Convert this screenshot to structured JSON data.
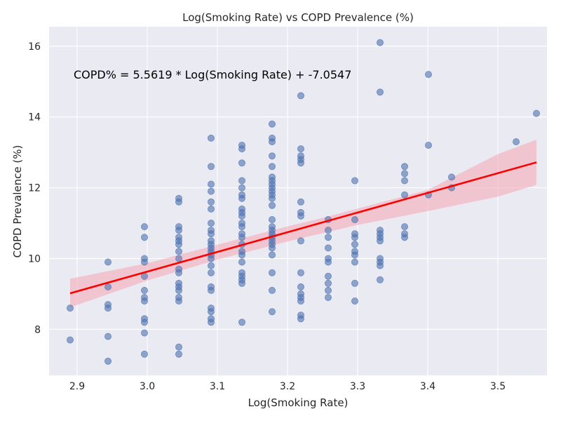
{
  "chart_data": {
    "type": "scatter",
    "title": "Log(Smoking Rate) vs COPD Prevalence (%)",
    "xlabel": "Log(Smoking Rate)",
    "ylabel": "COPD Prevalence (%)",
    "annotation": "COPD% = 5.5619 * Log(Smoking Rate) + -7.0547",
    "xlim": [
      2.86,
      3.57
    ],
    "ylim": [
      6.7,
      16.55
    ],
    "xticks": [
      "2.9",
      "3.0",
      "3.1",
      "3.2",
      "3.3",
      "3.4",
      "3.5"
    ],
    "yticks": [
      "8",
      "10",
      "12",
      "14",
      "16"
    ],
    "grid": true,
    "background": "#eaeaf2",
    "point_color": "#4c72b0",
    "line_color": "#ff0000",
    "band_color": "#f4a6b4",
    "regression": {
      "slope": 5.5619,
      "intercept": -7.0547,
      "x_start": 2.89,
      "x_end": 3.555
    },
    "confidence_band": {
      "x": [
        2.89,
        3.0,
        3.1,
        3.2,
        3.25,
        3.3,
        3.4,
        3.5,
        3.555
      ],
      "lower": [
        8.62,
        9.38,
        9.97,
        10.48,
        10.72,
        10.95,
        11.34,
        11.75,
        12.08
      ],
      "upper": [
        9.43,
        9.87,
        10.39,
        10.91,
        11.15,
        11.41,
        11.94,
        12.95,
        13.36
      ]
    },
    "points": [
      [
        2.89,
        7.7
      ],
      [
        2.89,
        8.6
      ],
      [
        2.944,
        7.1
      ],
      [
        2.944,
        7.8
      ],
      [
        2.944,
        8.6
      ],
      [
        2.944,
        8.7
      ],
      [
        2.944,
        9.2
      ],
      [
        2.944,
        9.9
      ],
      [
        2.996,
        7.3
      ],
      [
        2.996,
        7.9
      ],
      [
        2.996,
        8.2
      ],
      [
        2.996,
        8.3
      ],
      [
        2.996,
        8.8
      ],
      [
        2.996,
        8.9
      ],
      [
        2.996,
        9.1
      ],
      [
        2.996,
        9.5
      ],
      [
        2.996,
        9.9
      ],
      [
        2.996,
        10.0
      ],
      [
        2.996,
        10.6
      ],
      [
        2.996,
        10.9
      ],
      [
        3.045,
        7.3
      ],
      [
        3.045,
        7.5
      ],
      [
        3.045,
        8.8
      ],
      [
        3.045,
        8.9
      ],
      [
        3.045,
        9.1
      ],
      [
        3.045,
        9.2
      ],
      [
        3.045,
        9.3
      ],
      [
        3.045,
        9.6
      ],
      [
        3.045,
        9.7
      ],
      [
        3.045,
        10.0
      ],
      [
        3.045,
        10.2
      ],
      [
        3.045,
        10.4
      ],
      [
        3.045,
        10.5
      ],
      [
        3.045,
        10.6
      ],
      [
        3.045,
        10.8
      ],
      [
        3.045,
        10.9
      ],
      [
        3.045,
        11.6
      ],
      [
        3.045,
        11.7
      ],
      [
        3.091,
        8.2
      ],
      [
        3.091,
        8.3
      ],
      [
        3.091,
        8.5
      ],
      [
        3.091,
        8.6
      ],
      [
        3.091,
        9.1
      ],
      [
        3.091,
        9.2
      ],
      [
        3.091,
        9.6
      ],
      [
        3.091,
        9.8
      ],
      [
        3.091,
        10.0
      ],
      [
        3.091,
        10.1
      ],
      [
        3.091,
        10.2
      ],
      [
        3.091,
        10.3
      ],
      [
        3.091,
        10.4
      ],
      [
        3.091,
        10.5
      ],
      [
        3.091,
        10.7
      ],
      [
        3.091,
        10.8
      ],
      [
        3.091,
        11.0
      ],
      [
        3.091,
        11.4
      ],
      [
        3.091,
        11.6
      ],
      [
        3.091,
        11.9
      ],
      [
        3.091,
        12.1
      ],
      [
        3.091,
        12.6
      ],
      [
        3.091,
        13.4
      ],
      [
        3.135,
        8.2
      ],
      [
        3.135,
        9.3
      ],
      [
        3.135,
        9.4
      ],
      [
        3.135,
        9.5
      ],
      [
        3.135,
        9.6
      ],
      [
        3.135,
        9.9
      ],
      [
        3.135,
        10.1
      ],
      [
        3.135,
        10.2
      ],
      [
        3.135,
        10.4
      ],
      [
        3.135,
        10.6
      ],
      [
        3.135,
        10.7
      ],
      [
        3.135,
        10.9
      ],
      [
        3.135,
        11.0
      ],
      [
        3.135,
        11.2
      ],
      [
        3.135,
        11.3
      ],
      [
        3.135,
        11.4
      ],
      [
        3.135,
        11.7
      ],
      [
        3.135,
        11.8
      ],
      [
        3.135,
        12.0
      ],
      [
        3.135,
        12.2
      ],
      [
        3.135,
        12.7
      ],
      [
        3.135,
        13.1
      ],
      [
        3.135,
        13.2
      ],
      [
        3.178,
        8.5
      ],
      [
        3.178,
        9.1
      ],
      [
        3.178,
        9.6
      ],
      [
        3.178,
        10.1
      ],
      [
        3.178,
        10.3
      ],
      [
        3.178,
        10.4
      ],
      [
        3.178,
        10.5
      ],
      [
        3.178,
        10.6
      ],
      [
        3.178,
        10.7
      ],
      [
        3.178,
        10.8
      ],
      [
        3.178,
        10.9
      ],
      [
        3.178,
        11.1
      ],
      [
        3.178,
        11.5
      ],
      [
        3.178,
        11.7
      ],
      [
        3.178,
        11.8
      ],
      [
        3.178,
        11.9
      ],
      [
        3.178,
        12.0
      ],
      [
        3.178,
        12.1
      ],
      [
        3.178,
        12.2
      ],
      [
        3.178,
        12.3
      ],
      [
        3.178,
        12.6
      ],
      [
        3.178,
        12.9
      ],
      [
        3.178,
        13.3
      ],
      [
        3.178,
        13.4
      ],
      [
        3.178,
        13.8
      ],
      [
        3.219,
        8.3
      ],
      [
        3.219,
        8.4
      ],
      [
        3.219,
        8.8
      ],
      [
        3.219,
        8.9
      ],
      [
        3.219,
        9.0
      ],
      [
        3.219,
        9.2
      ],
      [
        3.219,
        9.6
      ],
      [
        3.219,
        10.5
      ],
      [
        3.219,
        11.2
      ],
      [
        3.219,
        11.3
      ],
      [
        3.219,
        11.6
      ],
      [
        3.219,
        12.7
      ],
      [
        3.219,
        12.8
      ],
      [
        3.219,
        12.9
      ],
      [
        3.219,
        13.1
      ],
      [
        3.219,
        14.6
      ],
      [
        3.258,
        8.9
      ],
      [
        3.258,
        9.1
      ],
      [
        3.258,
        9.3
      ],
      [
        3.258,
        9.5
      ],
      [
        3.258,
        9.9
      ],
      [
        3.258,
        10.0
      ],
      [
        3.258,
        10.3
      ],
      [
        3.258,
        10.6
      ],
      [
        3.258,
        10.8
      ],
      [
        3.258,
        11.1
      ],
      [
        3.296,
        8.8
      ],
      [
        3.296,
        9.3
      ],
      [
        3.296,
        9.9
      ],
      [
        3.296,
        10.1
      ],
      [
        3.296,
        10.2
      ],
      [
        3.296,
        10.4
      ],
      [
        3.296,
        10.6
      ],
      [
        3.296,
        10.7
      ],
      [
        3.296,
        11.1
      ],
      [
        3.296,
        12.2
      ],
      [
        3.332,
        9.4
      ],
      [
        3.332,
        9.8
      ],
      [
        3.332,
        9.9
      ],
      [
        3.332,
        10.0
      ],
      [
        3.332,
        10.5
      ],
      [
        3.332,
        10.6
      ],
      [
        3.332,
        10.7
      ],
      [
        3.332,
        10.8
      ],
      [
        3.332,
        14.7
      ],
      [
        3.332,
        16.1
      ],
      [
        3.367,
        10.6
      ],
      [
        3.367,
        10.7
      ],
      [
        3.367,
        10.9
      ],
      [
        3.367,
        11.8
      ],
      [
        3.367,
        12.2
      ],
      [
        3.367,
        12.4
      ],
      [
        3.367,
        12.6
      ],
      [
        3.401,
        11.8
      ],
      [
        3.401,
        13.2
      ],
      [
        3.401,
        15.2
      ],
      [
        3.434,
        12.0
      ],
      [
        3.434,
        12.3
      ],
      [
        3.526,
        13.3
      ],
      [
        3.555,
        14.1
      ]
    ]
  }
}
